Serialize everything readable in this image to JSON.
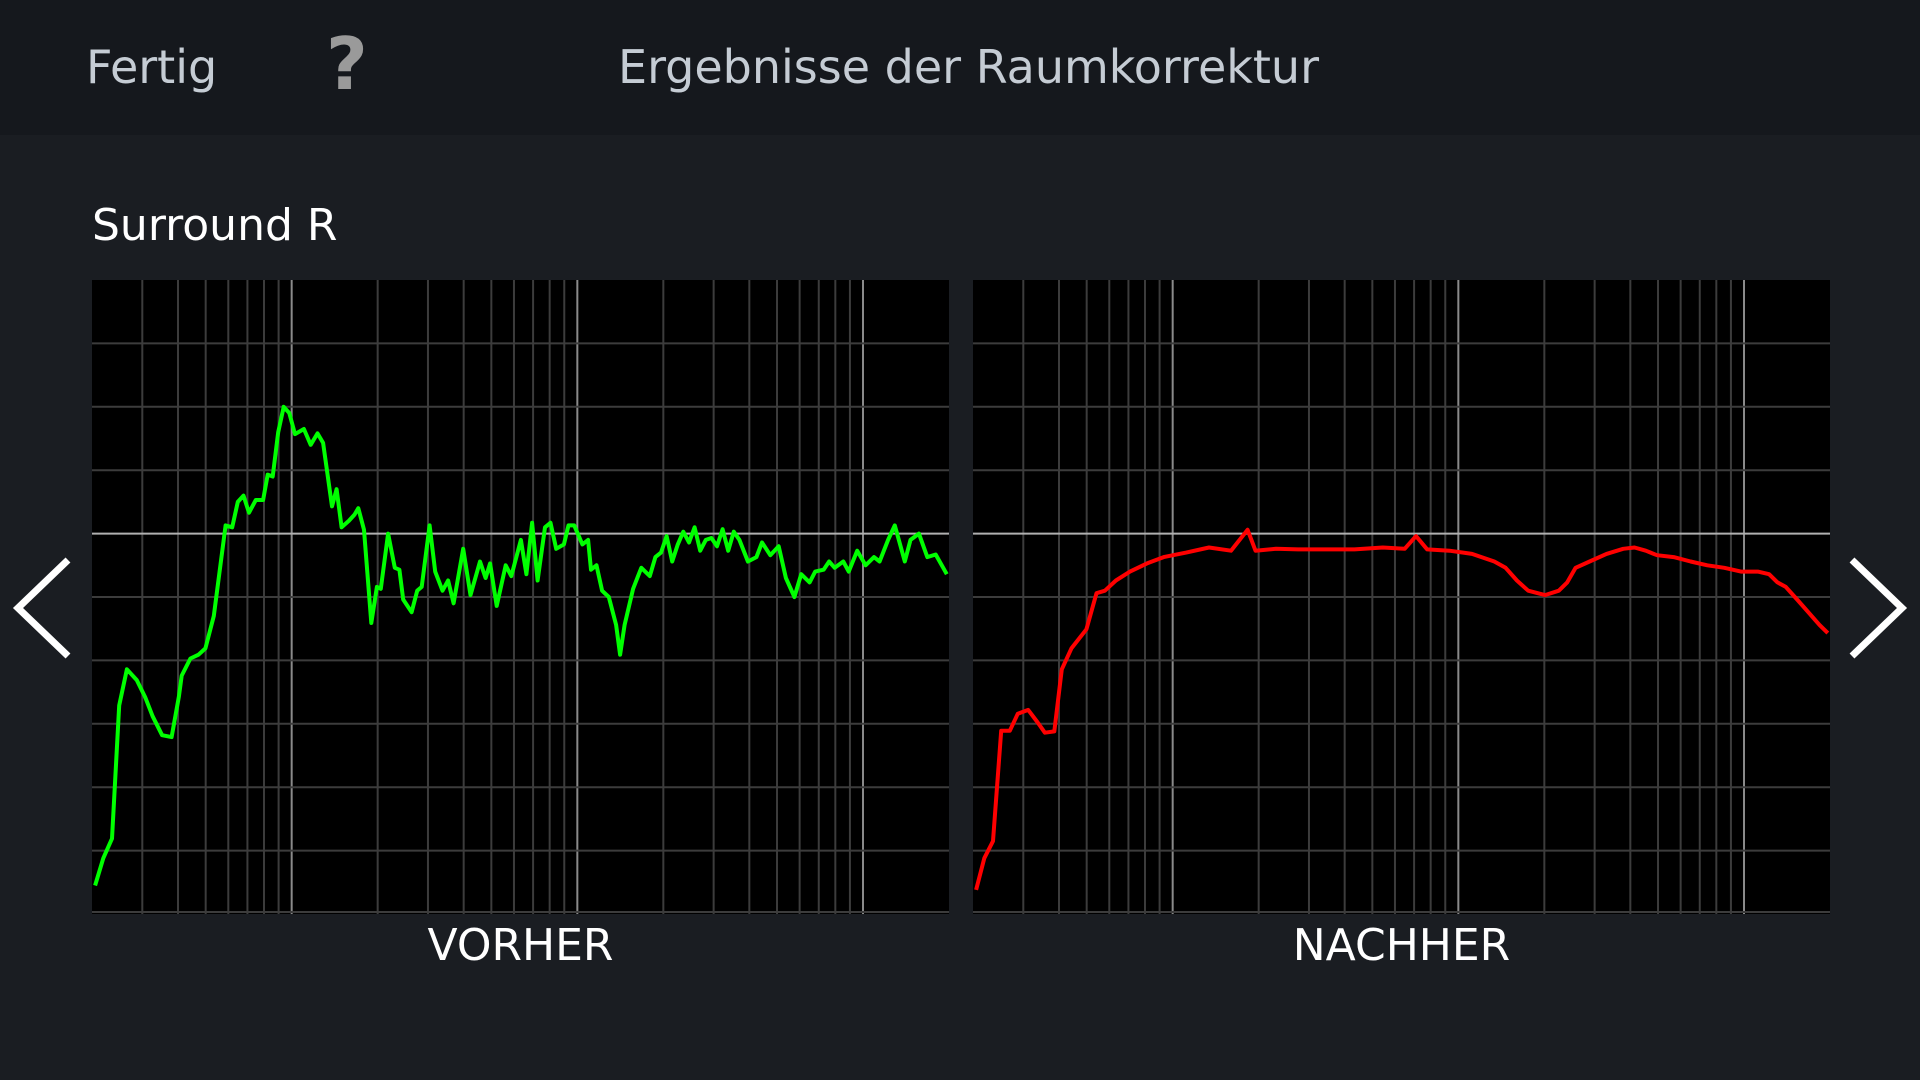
{
  "header": {
    "done_label": "Fertig",
    "help_label": "?",
    "title": "Ergebnisse der Raumkorrektur"
  },
  "speaker_name": "Surround R",
  "nav": {
    "prev_icon": "chevron-left-icon",
    "next_icon": "chevron-right-icon"
  },
  "colors": {
    "before": "#00ff00",
    "after": "#ff0000",
    "grid": "#3c3c3c",
    "grid_major": "#8a8a8a",
    "background": "#1a1d22"
  },
  "chart_data": [
    {
      "type": "line",
      "label": "VORHER",
      "x_scale": "log",
      "xlim": [
        20,
        20000
      ],
      "ylim": [
        -6,
        4
      ],
      "grid": true,
      "color": "#00ff00",
      "x": [
        20.5,
        21.9,
        23.5,
        24.9,
        26.5,
        28.7,
        30.7,
        32.6,
        35.2,
        38,
        40.3,
        41.2,
        44.2,
        47.2,
        49.9,
        53.4,
        58.7,
        61.9,
        64.8,
        67.8,
        70.9,
        74.9,
        79.4,
        82.4,
        85.8,
        89.7,
        93.8,
        98.1,
        102.7,
        110.4,
        116.6,
        123.1,
        128.8,
        138.4,
        143.6,
        149.5,
        158.5,
        165.9,
        171.1,
        179.1,
        190,
        198.7,
        205.1,
        217.5,
        229.6,
        238.2,
        245.7,
        263,
        275,
        285.2,
        303.9,
        317.9,
        337.3,
        352.8,
        368.9,
        398.4,
        422.6,
        456.3,
        477.4,
        494.9,
        522.2,
        561.5,
        587.3,
        634.5,
        663.5,
        694.3,
        726.1,
        770.6,
        805.6,
        843.3,
        897.4,
        931,
        974.7,
        1042,
        1091,
        1116,
        1167,
        1221,
        1289,
        1367,
        1411,
        1464,
        1567,
        1675,
        1793,
        1876,
        1963,
        2053,
        2148,
        2247,
        2350,
        2459,
        2573,
        2692,
        2816,
        2946,
        3082,
        3225,
        3374,
        3530,
        3693,
        3954,
        4234,
        4429,
        4735,
        5070,
        5372,
        5750,
        6074,
        6500,
        6800,
        7280,
        7610,
        7960,
        8530,
        8910,
        9540,
        10210,
        10930,
        11430,
        12240,
        12920,
        14010,
        14660,
        15690,
        16790,
        17960,
        19650
      ],
      "y": [
        -5.55,
        -5.12,
        -4.81,
        -2.71,
        -2.14,
        -2.31,
        -2.58,
        -2.88,
        -3.18,
        -3.21,
        -2.57,
        -2.24,
        -1.97,
        -1.91,
        -1.81,
        -1.3,
        0.13,
        0.1,
        0.5,
        0.6,
        0.33,
        0.53,
        0.53,
        0.93,
        0.9,
        1.6,
        2,
        1.9,
        1.57,
        1.65,
        1.4,
        1.58,
        1.43,
        0.43,
        0.7,
        0.1,
        0.2,
        0.3,
        0.4,
        0.06,
        -1.41,
        -0.84,
        -0.87,
        0,
        -0.54,
        -0.57,
        -1.04,
        -1.24,
        -0.9,
        -0.84,
        0.13,
        -0.6,
        -0.9,
        -0.74,
        -1.1,
        -0.24,
        -0.97,
        -0.44,
        -0.7,
        -0.47,
        -1.14,
        -0.5,
        -0.67,
        -0.1,
        -0.64,
        0.17,
        -0.74,
        0.1,
        0.17,
        -0.24,
        -0.17,
        0.13,
        0.13,
        -0.17,
        -0.1,
        -0.57,
        -0.5,
        -0.9,
        -1,
        -1.44,
        -1.91,
        -1.44,
        -0.87,
        -0.54,
        -0.67,
        -0.37,
        -0.3,
        -0.04,
        -0.44,
        -0.17,
        0.03,
        -0.14,
        0.1,
        -0.27,
        -0.1,
        -0.07,
        -0.2,
        0.07,
        -0.27,
        0.03,
        -0.1,
        -0.44,
        -0.37,
        -0.14,
        -0.34,
        -0.2,
        -0.7,
        -1,
        -0.64,
        -0.77,
        -0.6,
        -0.57,
        -0.44,
        -0.54,
        -0.44,
        -0.6,
        -0.27,
        -0.5,
        -0.37,
        -0.44,
        -0.1,
        0.13,
        -0.44,
        -0.1,
        0,
        -0.37,
        -0.33,
        -0.64
      ]
    },
    {
      "type": "line",
      "label": "NACHHER",
      "x_scale": "log",
      "xlim": [
        20,
        20000
      ],
      "ylim": [
        -6,
        4
      ],
      "grid": true,
      "color": "#ff0000",
      "x": [
        20.5,
        21.9,
        23.5,
        25.1,
        26.9,
        28.7,
        31.2,
        33.7,
        35.7,
        38.5,
        40.9,
        44.2,
        49.9,
        54.1,
        57.9,
        63.3,
        70.9,
        81.3,
        93,
        111.5,
        134,
        160,
        183,
        195,
        230,
        275,
        345,
        433,
        544,
        649,
        711,
        778,
        931,
        1116,
        1336,
        1464,
        1603,
        1756,
        2011,
        2247,
        2404,
        2573,
        2880,
        3300,
        3777,
        4138,
        4530,
        4958,
        5672,
        6500,
        7440,
        8530,
        9760,
        11180,
        12240,
        13100,
        14010,
        15340,
        16790,
        18380,
        19650
      ],
      "y": [
        -5.62,
        -5.12,
        -4.85,
        -3.11,
        -3.11,
        -2.84,
        -2.78,
        -2.98,
        -3.14,
        -3.12,
        -2.14,
        -1.81,
        -1.51,
        -0.94,
        -0.9,
        -0.74,
        -0.6,
        -0.47,
        -0.37,
        -0.3,
        -0.22,
        -0.27,
        0.06,
        -0.27,
        -0.24,
        -0.25,
        -0.25,
        -0.25,
        -0.22,
        -0.24,
        -0.04,
        -0.25,
        -0.27,
        -0.32,
        -0.44,
        -0.54,
        -0.74,
        -0.9,
        -0.97,
        -0.9,
        -0.77,
        -0.54,
        -0.44,
        -0.32,
        -0.24,
        -0.22,
        -0.27,
        -0.34,
        -0.37,
        -0.44,
        -0.5,
        -0.54,
        -0.6,
        -0.6,
        -0.64,
        -0.77,
        -0.84,
        -1.04,
        -1.24,
        -1.44,
        -1.57
      ]
    }
  ]
}
